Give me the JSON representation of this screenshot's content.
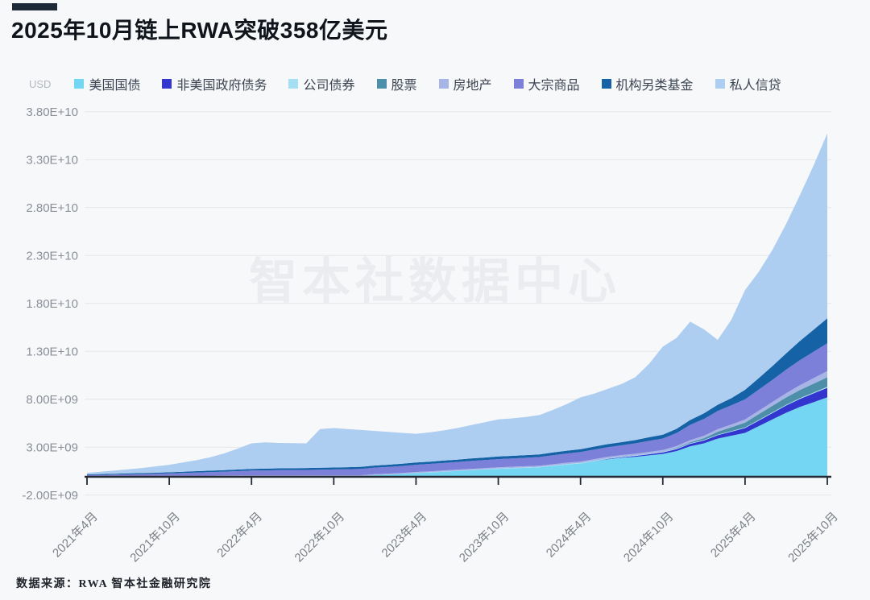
{
  "header": {
    "title": "2025年10月链上RWA突破358亿美元",
    "accent_bar_color": "#1e2a38"
  },
  "watermark": "智本社数据中心",
  "footer": {
    "source": "数据来源：RWA  智本社金融研究院"
  },
  "chart_data": {
    "type": "area",
    "stacked": true,
    "grid": true,
    "legend_position": "top",
    "title": "2025年10月链上RWA突破358亿美元",
    "unit_label": "USD",
    "values_in": "billions_usd",
    "x_step": "monthly",
    "x_start": "2021-04",
    "x_end": "2025-10",
    "total_latest_billions": 35.8,
    "x_tick_labels": [
      "2021年4月",
      "2021年10月",
      "2022年4月",
      "2022年10月",
      "2023年4月",
      "2023年10月",
      "2024年4月",
      "2024年10月",
      "2025年4月",
      "2025年10月"
    ],
    "x_tick_indices": [
      0,
      6,
      12,
      18,
      24,
      30,
      36,
      42,
      48,
      54
    ],
    "y_tick_labels": [
      "3.80E+10",
      "3.30E+10",
      "2.80E+10",
      "2.30E+10",
      "1.80E+10",
      "1.30E+10",
      "8.00E+09",
      "3.00E+09",
      "-2.00E+09"
    ],
    "y_tick_values_billions": [
      38,
      33,
      28,
      23,
      18,
      13,
      8,
      3,
      -2
    ],
    "y_min_billions": -2,
    "y_max_billions": 38,
    "series": [
      {
        "key": "us-treasury",
        "name": "美国国债",
        "color": "#74d6f2",
        "values": [
          0,
          0,
          0,
          0,
          0,
          0,
          0,
          0,
          0,
          0,
          0,
          0,
          0,
          0,
          0,
          0,
          0,
          0,
          0,
          0,
          0,
          0.1,
          0.15,
          0.22,
          0.3,
          0.36,
          0.44,
          0.52,
          0.6,
          0.68,
          0.75,
          0.8,
          0.85,
          0.9,
          1.05,
          1.2,
          1.3,
          1.55,
          1.75,
          1.9,
          2.0,
          2.15,
          2.3,
          2.6,
          3.1,
          3.4,
          3.9,
          4.2,
          4.5,
          5.2,
          5.9,
          6.6,
          7.2,
          7.7,
          8.2
        ]
      },
      {
        "key": "non-us-gov-debt",
        "name": "非美国政府债务",
        "color": "#3335cf",
        "values": [
          0,
          0,
          0,
          0,
          0,
          0,
          0,
          0,
          0,
          0,
          0,
          0,
          0,
          0,
          0,
          0,
          0,
          0,
          0,
          0,
          0,
          0,
          0,
          0,
          0,
          0,
          0,
          0,
          0,
          0,
          0,
          0,
          0,
          0,
          0,
          0,
          0,
          0,
          0.04,
          0.06,
          0.09,
          0.12,
          0.15,
          0.2,
          0.25,
          0.3,
          0.35,
          0.42,
          0.5,
          0.58,
          0.66,
          0.75,
          0.83,
          0.92,
          1.0
        ]
      },
      {
        "key": "corporate-bonds",
        "name": "公司债券",
        "color": "#a5e0f2",
        "values": [
          0,
          0,
          0,
          0,
          0,
          0,
          0,
          0,
          0,
          0,
          0,
          0,
          0,
          0,
          0,
          0,
          0,
          0,
          0,
          0,
          0,
          0,
          0,
          0,
          0.02,
          0.025,
          0.03,
          0.03,
          0.03,
          0.03,
          0.04,
          0.04,
          0.04,
          0.04,
          0.04,
          0.04,
          0.05,
          0.05,
          0.05,
          0.05,
          0.05,
          0.05,
          0.06,
          0.06,
          0.06,
          0.06,
          0.06,
          0.06,
          0.07,
          0.07,
          0.08,
          0.08,
          0.09,
          0.09,
          0.1
        ]
      },
      {
        "key": "stocks",
        "name": "股票",
        "color": "#4d8fa8",
        "values": [
          0,
          0,
          0,
          0,
          0,
          0,
          0,
          0,
          0,
          0,
          0,
          0,
          0,
          0,
          0,
          0,
          0,
          0,
          0,
          0,
          0,
          0,
          0,
          0,
          0,
          0,
          0,
          0,
          0,
          0,
          0,
          0,
          0,
          0,
          0,
          0,
          0,
          0,
          0,
          0,
          0,
          0,
          0,
          0.05,
          0.1,
          0.18,
          0.3,
          0.4,
          0.5,
          0.6,
          0.68,
          0.76,
          0.85,
          0.92,
          1.0
        ]
      },
      {
        "key": "real-estate",
        "name": "房地产",
        "color": "#a7b4e6",
        "values": [
          0.01,
          0.015,
          0.02,
          0.022,
          0.025,
          0.028,
          0.03,
          0.035,
          0.04,
          0.045,
          0.05,
          0.055,
          0.06,
          0.063,
          0.066,
          0.07,
          0.073,
          0.076,
          0.08,
          0.083,
          0.086,
          0.09,
          0.093,
          0.096,
          0.1,
          0.103,
          0.106,
          0.11,
          0.113,
          0.116,
          0.12,
          0.125,
          0.13,
          0.135,
          0.14,
          0.145,
          0.15,
          0.157,
          0.165,
          0.173,
          0.18,
          0.19,
          0.2,
          0.21,
          0.23,
          0.25,
          0.27,
          0.29,
          0.32,
          0.36,
          0.4,
          0.45,
          0.51,
          0.58,
          0.65
        ]
      },
      {
        "key": "commodities",
        "name": "大宗商品",
        "color": "#7d80d8",
        "values": [
          0.08,
          0.1,
          0.12,
          0.15,
          0.18,
          0.2,
          0.24,
          0.28,
          0.32,
          0.36,
          0.4,
          0.45,
          0.5,
          0.52,
          0.54,
          0.55,
          0.56,
          0.58,
          0.6,
          0.62,
          0.65,
          0.68,
          0.7,
          0.73,
          0.75,
          0.77,
          0.78,
          0.8,
          0.82,
          0.84,
          0.85,
          0.87,
          0.88,
          0.9,
          0.93,
          0.96,
          1.0,
          1.0,
          1.0,
          1.02,
          1.08,
          1.15,
          1.2,
          1.35,
          1.6,
          1.75,
          1.9,
          2.0,
          2.1,
          2.2,
          2.3,
          2.45,
          2.6,
          2.75,
          2.9
        ]
      },
      {
        "key": "institutional-alt-funds",
        "name": "机构另类基金",
        "color": "#1563a6",
        "values": [
          0.08,
          0.09,
          0.09,
          0.1,
          0.1,
          0.11,
          0.12,
          0.13,
          0.14,
          0.15,
          0.16,
          0.17,
          0.18,
          0.18,
          0.19,
          0.19,
          0.2,
          0.2,
          0.2,
          0.21,
          0.22,
          0.22,
          0.23,
          0.23,
          0.24,
          0.24,
          0.25,
          0.25,
          0.26,
          0.26,
          0.27,
          0.27,
          0.28,
          0.28,
          0.29,
          0.29,
          0.3,
          0.31,
          0.32,
          0.33,
          0.35,
          0.38,
          0.4,
          0.45,
          0.5,
          0.6,
          0.65,
          0.75,
          1.0,
          1.2,
          1.45,
          1.7,
          2.0,
          2.3,
          2.6
        ]
      },
      {
        "key": "private-credit",
        "name": "私人信贷",
        "color": "#adcdf1",
        "values": [
          0.16,
          0.24,
          0.33,
          0.42,
          0.53,
          0.66,
          0.78,
          0.96,
          1.15,
          1.4,
          1.74,
          2.18,
          2.66,
          2.74,
          2.65,
          2.61,
          2.57,
          4.04,
          4.12,
          3.99,
          3.84,
          3.61,
          3.43,
          3.22,
          2.99,
          3.05,
          3.14,
          3.29,
          3.48,
          3.67,
          3.87,
          3.9,
          3.97,
          4.1,
          4.45,
          4.87,
          5.4,
          5.53,
          5.78,
          6.07,
          6.55,
          7.66,
          9.19,
          9.48,
          10.26,
          8.76,
          6.77,
          8.18,
          10.41,
          11.09,
          12.13,
          13.51,
          15.22,
          17.14,
          19.3
        ]
      }
    ]
  },
  "style_colors": {
    "background": "#f7f8fa",
    "grid_line": "#e3e5ea",
    "axis_line": "#232a35",
    "y_label": "#8b8f98",
    "x_label": "#7c8087",
    "legend_text": "#3c4452",
    "watermark": "#eaecf0"
  }
}
